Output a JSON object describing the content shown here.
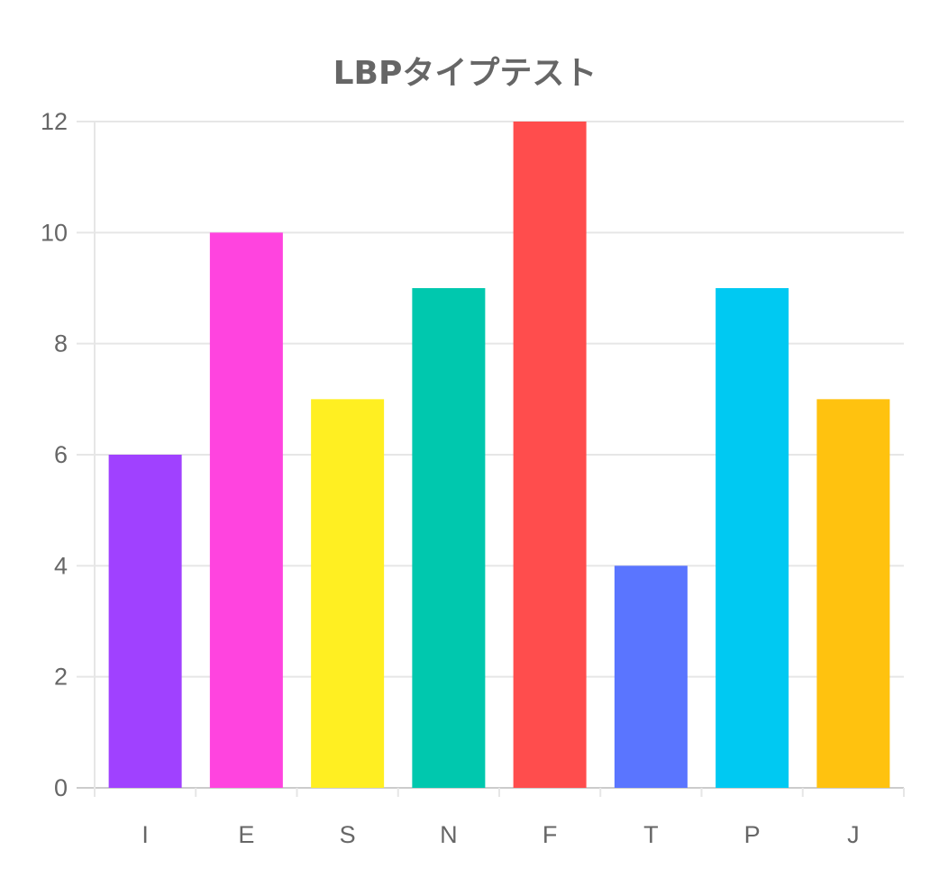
{
  "chart_data": {
    "type": "bar",
    "title": "LBPタイプテスト",
    "categories": [
      "I",
      "E",
      "S",
      "N",
      "F",
      "T",
      "P",
      "J"
    ],
    "values": [
      6,
      10,
      7,
      9,
      12,
      4,
      9,
      7
    ],
    "colors": [
      "#a041ff",
      "#ff44df",
      "#ffef22",
      "#00c8ae",
      "#ff4d4d",
      "#5a75ff",
      "#00c9f2",
      "#ffc20f"
    ],
    "ylim": [
      0,
      12
    ],
    "yticks": [
      0,
      2,
      4,
      6,
      8,
      10,
      12
    ],
    "grid": true,
    "legend": "none",
    "xlabel": "",
    "ylabel": ""
  }
}
